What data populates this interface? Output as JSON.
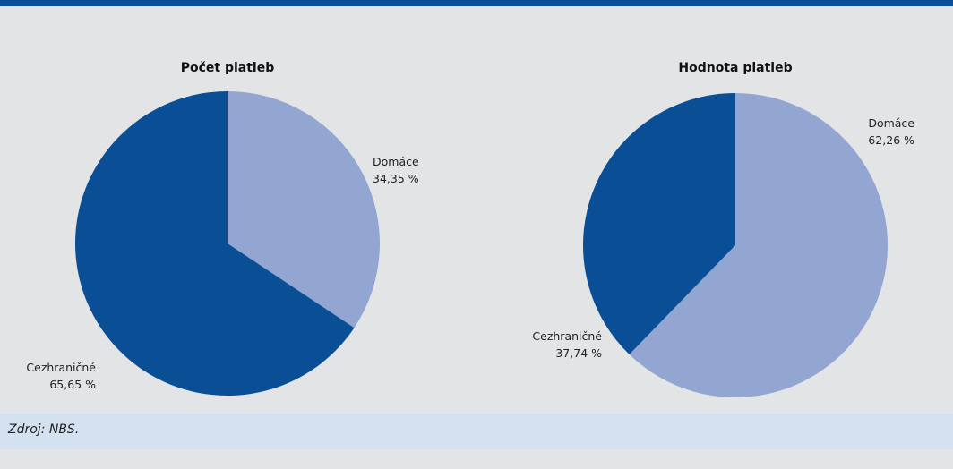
{
  "colors": {
    "top_bar": "#0a4f96",
    "dark_slice": "#0a4f96",
    "light_slice": "#92a6d1",
    "background": "#e3e4e6",
    "footer_band": "#d4e1f0"
  },
  "source": "Zdroj: NBS.",
  "chart_data": [
    {
      "type": "pie",
      "title": "Počet platieb",
      "slices": [
        {
          "name": "Domáce",
          "value_label": "34,35 %",
          "value": 34.35,
          "color_key": "light_slice"
        },
        {
          "name": "Cezhraničné",
          "value_label": "65,65 %",
          "value": 65.65,
          "color_key": "dark_slice"
        }
      ]
    },
    {
      "type": "pie",
      "title": "Hodnota platieb",
      "slices": [
        {
          "name": "Domáce",
          "value_label": "62,26 %",
          "value": 62.26,
          "color_key": "light_slice"
        },
        {
          "name": "Cezhraničné",
          "value_label": "37,74 %",
          "value": 37.74,
          "color_key": "dark_slice"
        }
      ]
    }
  ]
}
